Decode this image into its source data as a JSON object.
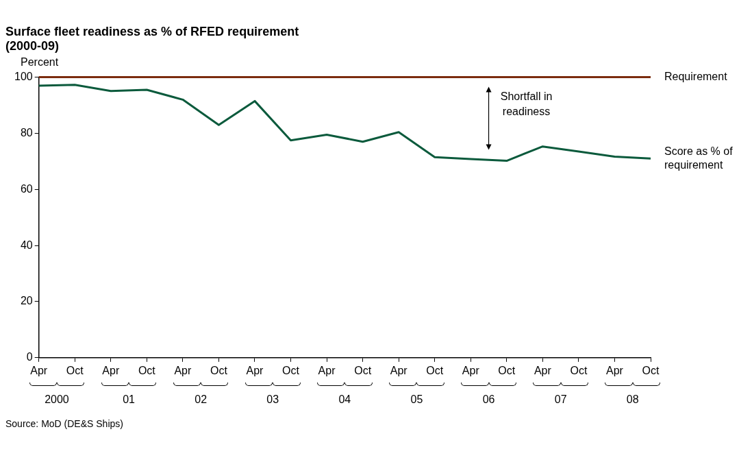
{
  "chart_data": {
    "type": "line",
    "title": "Surface fleet readiness as % of RFED requirement (2000-09)",
    "ylabel": "Percent",
    "categories": [
      "Apr",
      "Oct",
      "Apr",
      "Oct",
      "Apr",
      "Oct",
      "Apr",
      "Oct",
      "Apr",
      "Oct",
      "Apr",
      "Oct",
      "Apr",
      "Oct",
      "Apr",
      "Oct",
      "Apr",
      "Oct"
    ],
    "series": [
      {
        "name": "Score as % of requirement",
        "color": "#0b5a3c",
        "values": [
          97,
          97.3,
          95.1,
          95.5,
          92,
          83,
          91.5,
          77.5,
          79.5,
          77,
          80.4,
          71.5,
          70.8,
          70.2,
          75.3,
          73.5,
          71.7,
          71
        ]
      }
    ],
    "ylim": [
      0,
      100
    ],
    "yticks": [
      0,
      20,
      40,
      60,
      80,
      100
    ],
    "grid": false,
    "legend": false,
    "marker": "none",
    "line_style": "solid",
    "ref_lines": [
      {
        "axis": "y",
        "value": 100,
        "label": "Requirement",
        "color": "#7b2c0e"
      }
    ],
    "annotations": [
      "2000",
      "01",
      "02",
      "03",
      "04",
      "05",
      "06",
      "07",
      "08",
      "Shortfall in readiness",
      "Source: MoD (DE&S Ships)"
    ]
  }
}
